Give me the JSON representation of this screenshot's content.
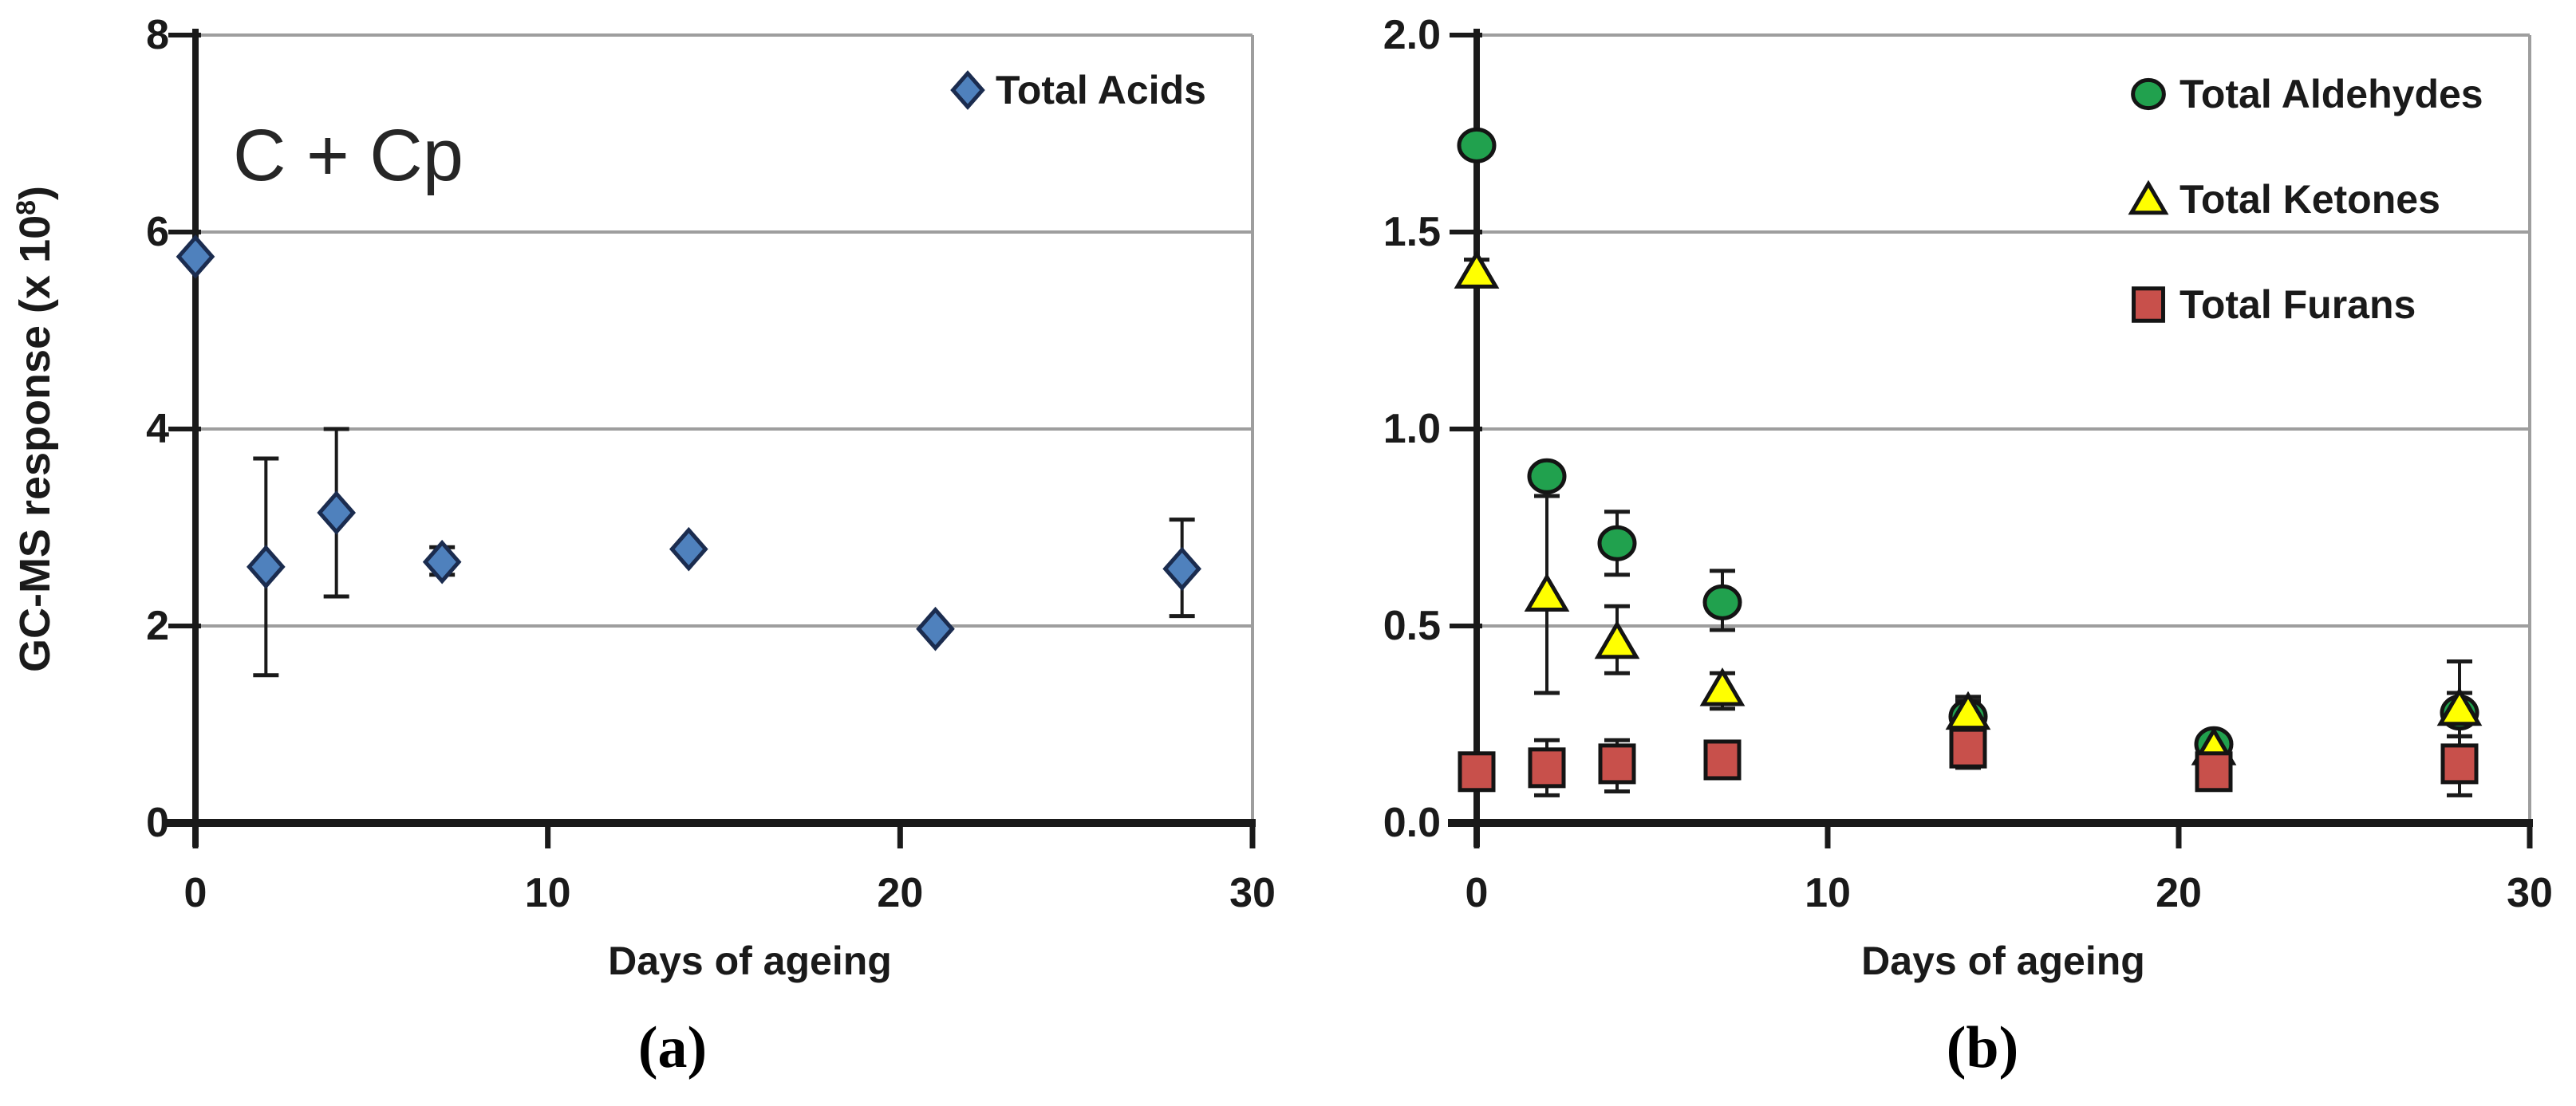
{
  "figure": {
    "background": "#FFFFFF",
    "grid_color": "#9E9E9E",
    "axis_color": "#1A1A1A",
    "text_color": "#1A1A1A"
  },
  "chart_data": [
    {
      "panel": "a",
      "type": "scatter",
      "caption": "(a)",
      "annotation": "C + Cp",
      "xlabel": "Days of ageing",
      "ylabel": {
        "prefix": "GC-MS response (x 10",
        "superscript": "8",
        "suffix": ")"
      },
      "x": {
        "min": 0,
        "max": 30,
        "ticks": [
          0,
          10,
          20,
          30
        ],
        "tick_labels": [
          "0",
          "10",
          "20",
          "30"
        ]
      },
      "y": {
        "min": 0,
        "max": 8,
        "ticks": [
          0,
          2,
          4,
          6,
          8
        ],
        "tick_labels": [
          "0",
          "2",
          "4",
          "6",
          "8"
        ]
      },
      "grid": true,
      "legend_position": "top-right",
      "days": [
        0,
        2,
        4,
        7,
        14,
        21,
        28
      ],
      "series": [
        {
          "name": "Total Acids",
          "marker": "diamond",
          "fill": "#4F81BD",
          "stroke": "#1B2C4F",
          "values": [
            5.75,
            2.6,
            3.15,
            2.65,
            2.78,
            1.97,
            2.58
          ],
          "err_minus": [
            0,
            1.1,
            0.85,
            0.13,
            0,
            0,
            0.48
          ],
          "err_plus": [
            0,
            1.1,
            0.85,
            0.15,
            0,
            0,
            0.5
          ]
        }
      ],
      "legend": {
        "items": [
          {
            "label": "Total Acids",
            "marker": "diamond"
          }
        ]
      }
    },
    {
      "panel": "b",
      "type": "scatter",
      "caption": "(b)",
      "annotation": "",
      "xlabel": "Days of ageing",
      "x": {
        "min": 0,
        "max": 30,
        "ticks": [
          0,
          10,
          20,
          30
        ],
        "tick_labels": [
          "0",
          "10",
          "20",
          "30"
        ]
      },
      "y": {
        "min": 0,
        "max": 2,
        "ticks": [
          0,
          0.5,
          1,
          1.5,
          2
        ],
        "tick_labels": [
          "0.0",
          "0.5",
          "1.0",
          "1.5",
          "2.0"
        ]
      },
      "grid": true,
      "legend_position": "top-right",
      "days": [
        0,
        2,
        4,
        7,
        14,
        21,
        28
      ],
      "series": [
        {
          "name": "Total Aldehydes",
          "marker": "circle",
          "fill": "#21A14E",
          "stroke": "#141414",
          "values": [
            1.72,
            0.88,
            0.71,
            0.56,
            0.27,
            0.2,
            0.28
          ],
          "err_minus": [
            0.03,
            0,
            0.08,
            0.07,
            0.04,
            0.02,
            0.06
          ],
          "err_plus": [
            0.03,
            0,
            0.08,
            0.08,
            0.04,
            0.02,
            0.13
          ]
        },
        {
          "name": "Total Ketones",
          "marker": "triangle",
          "fill": "#FFFF00",
          "stroke": "#141414",
          "values": [
            1.4,
            0.58,
            0.46,
            0.34,
            0.28,
            0.19,
            0.29
          ],
          "err_minus": [
            0.03,
            0.25,
            0.08,
            0.05,
            0.04,
            0.02,
            0.04
          ],
          "err_plus": [
            0.03,
            0.25,
            0.09,
            0.04,
            0.04,
            0.02,
            0.04
          ]
        },
        {
          "name": "Total Furans",
          "marker": "square",
          "fill": "#C8504B",
          "stroke": "#141414",
          "values": [
            0.13,
            0.14,
            0.15,
            0.16,
            0.19,
            0.13,
            0.15
          ],
          "err_minus": [
            0,
            0.07,
            0.07,
            0.02,
            0.05,
            0.03,
            0.08
          ],
          "err_plus": [
            0,
            0.07,
            0.06,
            0.02,
            0.05,
            0.03,
            0.07
          ]
        }
      ],
      "legend": {
        "items": [
          {
            "label": "Total Aldehydes",
            "marker": "circle"
          },
          {
            "label": "Total Ketones",
            "marker": "triangle"
          },
          {
            "label": "Total Furans",
            "marker": "square"
          }
        ]
      }
    }
  ]
}
